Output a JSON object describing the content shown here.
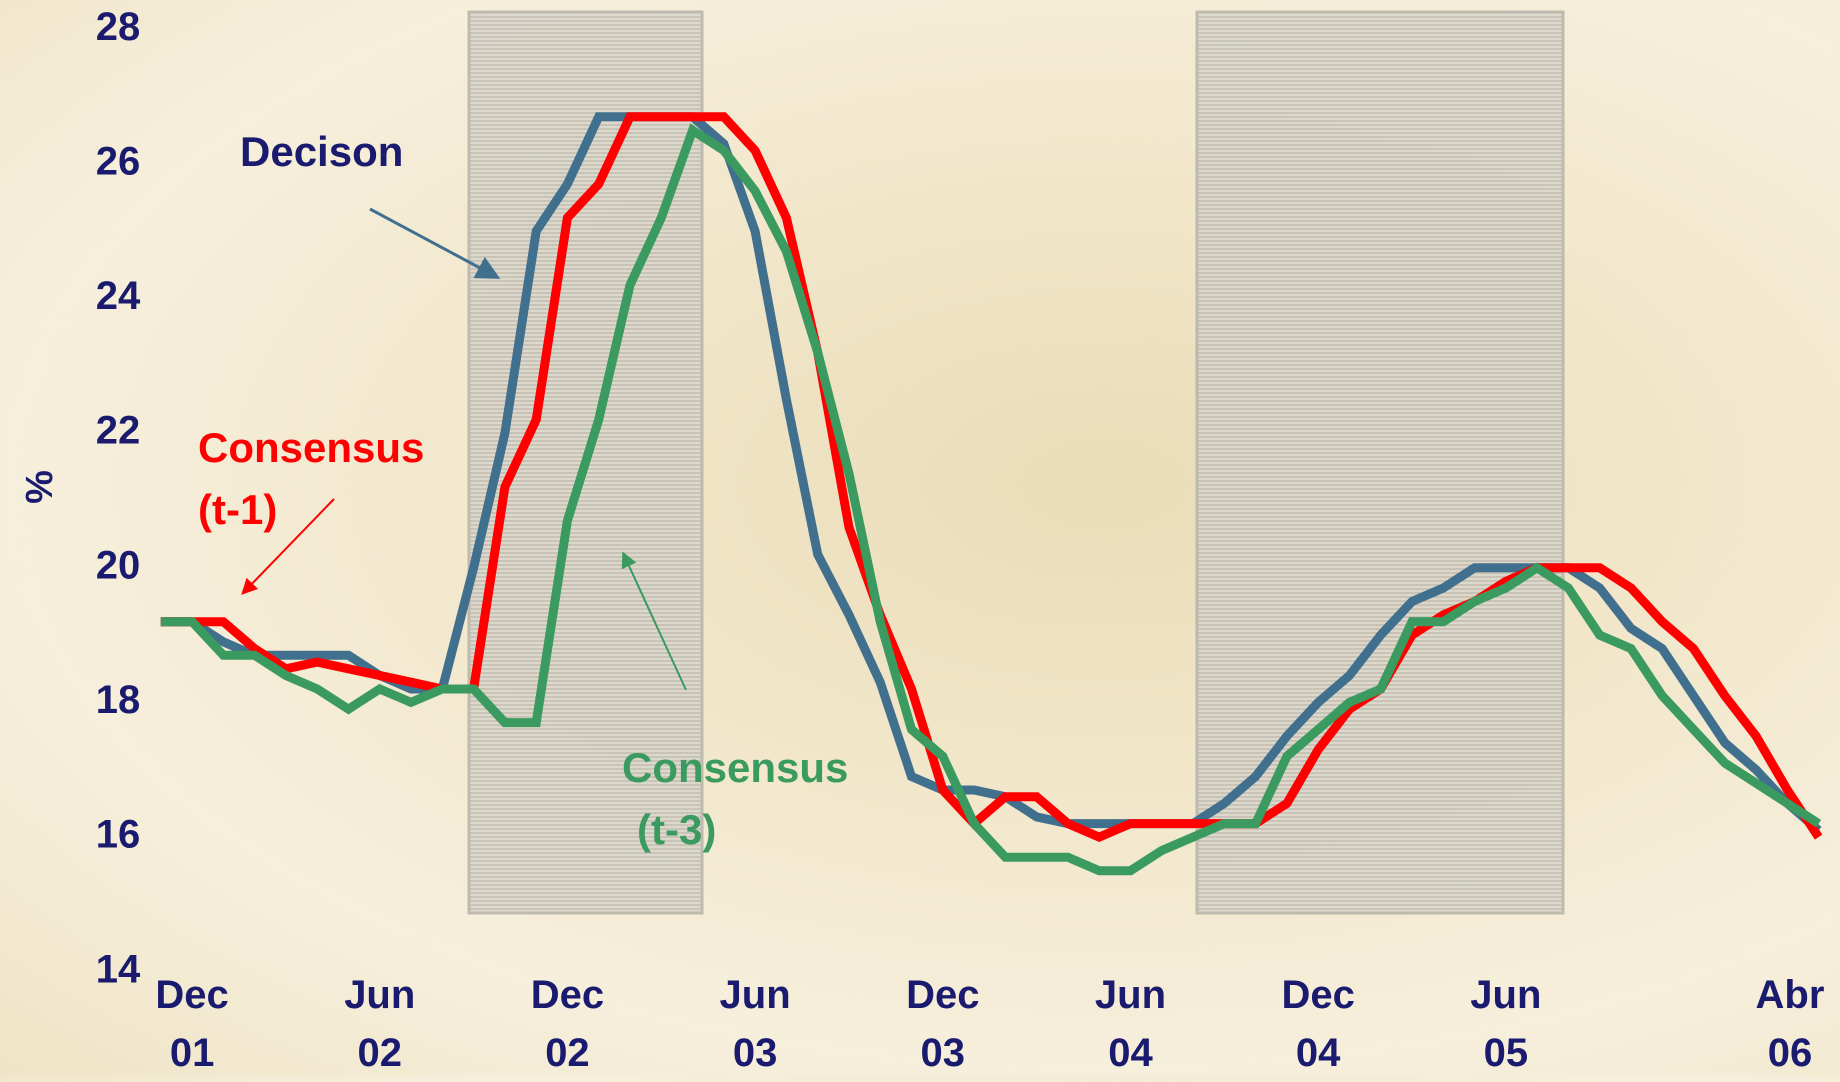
{
  "chart_data": {
    "type": "line",
    "y_label": "%",
    "categories": [
      null,
      "Dec 01",
      null,
      null,
      null,
      null,
      null,
      "Jun 02",
      null,
      null,
      null,
      null,
      null,
      "Dec 02",
      null,
      null,
      null,
      null,
      null,
      "Jun 03",
      null,
      null,
      null,
      null,
      null,
      "Dec 03",
      null,
      null,
      null,
      null,
      null,
      "Jun 04",
      null,
      null,
      null,
      null,
      null,
      "Dec 04",
      null,
      null,
      null,
      null,
      null,
      "Jun 05",
      null,
      null,
      null,
      null,
      null,
      null,
      null,
      null,
      null,
      "Abr 06"
    ],
    "series": [
      {
        "name": "Decison",
        "color": "#41708f",
        "values": [
          19.2,
          19.2,
          18.9,
          18.7,
          18.7,
          18.7,
          18.7,
          18.4,
          18.2,
          18.2,
          20.0,
          22.0,
          25.0,
          25.7,
          26.7,
          26.7,
          26.7,
          26.7,
          26.3,
          25.0,
          22.5,
          20.2,
          19.3,
          18.3,
          16.9,
          16.7,
          16.7,
          16.6,
          16.3,
          16.2,
          16.2,
          16.2,
          16.2,
          16.2,
          16.5,
          16.9,
          17.5,
          18.0,
          18.4,
          19.0,
          19.5,
          19.7,
          20.0,
          20.0,
          20.0,
          20.0,
          19.7,
          19.1,
          18.8,
          18.1,
          17.4,
          17.0,
          16.5,
          16.1
        ]
      },
      {
        "name": "Consensus (t-1)",
        "color": "#ff0000",
        "values": [
          19.2,
          19.2,
          19.2,
          18.8,
          18.5,
          18.6,
          18.5,
          18.4,
          18.3,
          18.2,
          18.2,
          21.2,
          22.2,
          25.2,
          25.7,
          26.7,
          26.7,
          26.7,
          26.7,
          26.2,
          25.2,
          23.2,
          20.6,
          19.3,
          18.2,
          16.7,
          16.2,
          16.6,
          16.6,
          16.2,
          16.0,
          16.2,
          16.2,
          16.2,
          16.2,
          16.2,
          16.5,
          17.3,
          17.9,
          18.2,
          19.0,
          19.3,
          19.5,
          19.8,
          20.0,
          20.0,
          20.0,
          19.7,
          19.2,
          18.8,
          18.1,
          17.5,
          16.7,
          16.0
        ]
      },
      {
        "name": "Consensus (t-3)",
        "color": "#3a9a5f",
        "values": [
          19.2,
          19.2,
          18.7,
          18.7,
          18.4,
          18.2,
          17.9,
          18.2,
          18.0,
          18.2,
          18.2,
          17.7,
          17.7,
          20.7,
          22.2,
          24.2,
          25.2,
          26.5,
          26.2,
          25.6,
          24.7,
          23.2,
          21.4,
          19.2,
          17.6,
          17.2,
          16.2,
          15.7,
          15.7,
          15.7,
          15.5,
          15.5,
          15.8,
          16.0,
          16.2,
          16.2,
          17.2,
          17.6,
          18.0,
          18.2,
          19.2,
          19.2,
          19.5,
          19.7,
          20.0,
          19.7,
          19.0,
          18.8,
          18.1,
          17.6,
          17.1,
          16.8,
          16.5,
          16.2
        ]
      }
    ],
    "annotations": [
      {
        "lines": [
          "Decison"
        ],
        "color": "#1a1a6e"
      },
      {
        "lines": [
          "Consensus",
          "(t-1)"
        ],
        "color": "#ff0000"
      },
      {
        "lines": [
          "Consensus",
          "(t-3)"
        ],
        "color": "#3a9a5f"
      }
    ],
    "ylim": [
      14,
      28
    ],
    "yticks": [
      14,
      16,
      18,
      20,
      22,
      24,
      26,
      28
    ],
    "grid": false
  }
}
